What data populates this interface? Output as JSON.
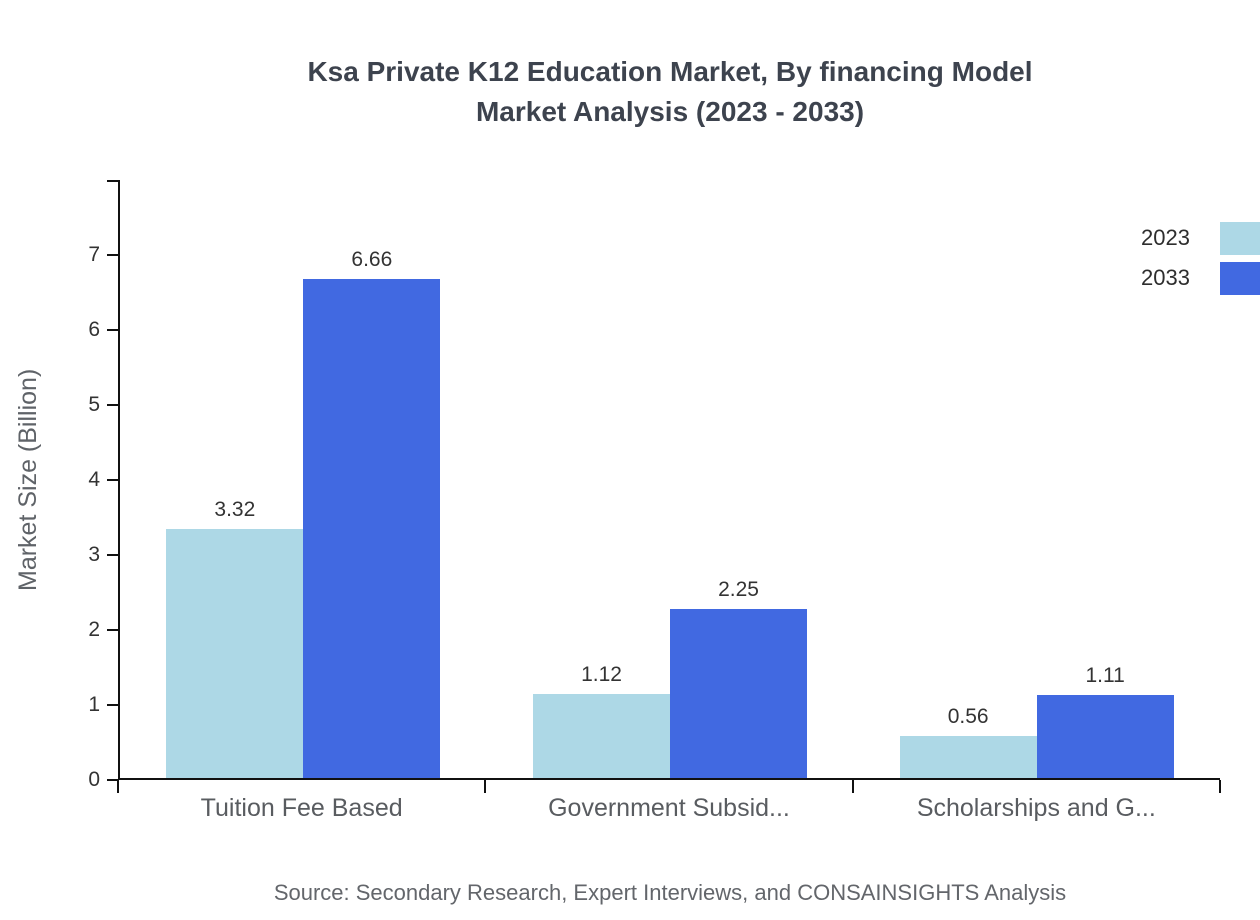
{
  "title": {
    "line1": "Ksa Private K12 Education Market, By financing Model",
    "line2": "Market Analysis (2023 - 2033)"
  },
  "source": "Source: Secondary Research, Expert Interviews, and CONSAINSIGHTS Analysis",
  "legend": {
    "items": [
      {
        "label": "2023",
        "color": "#ADD8E6"
      },
      {
        "label": "2033",
        "color": "#4169E1"
      }
    ]
  },
  "chart_data": {
    "type": "bar",
    "title": "Ksa Private K12 Education Market, By financing Model Market Analysis (2023 - 2033)",
    "xlabel": "",
    "ylabel": "Market Size (Billion)",
    "categories": [
      "Tuition Fee Based",
      "Government Subsid...",
      "Scholarships and G..."
    ],
    "series": [
      {
        "name": "2023",
        "color": "#ADD8E6",
        "values": [
          3.32,
          1.12,
          0.56
        ]
      },
      {
        "name": "2033",
        "color": "#4169E1",
        "values": [
          6.66,
          2.25,
          1.11
        ]
      }
    ],
    "ylim": [
      0,
      8
    ],
    "yticks": [
      0,
      1,
      2,
      3,
      4,
      5,
      6,
      7
    ],
    "grid": false,
    "legend_position": "top-right",
    "value_labels": true
  }
}
